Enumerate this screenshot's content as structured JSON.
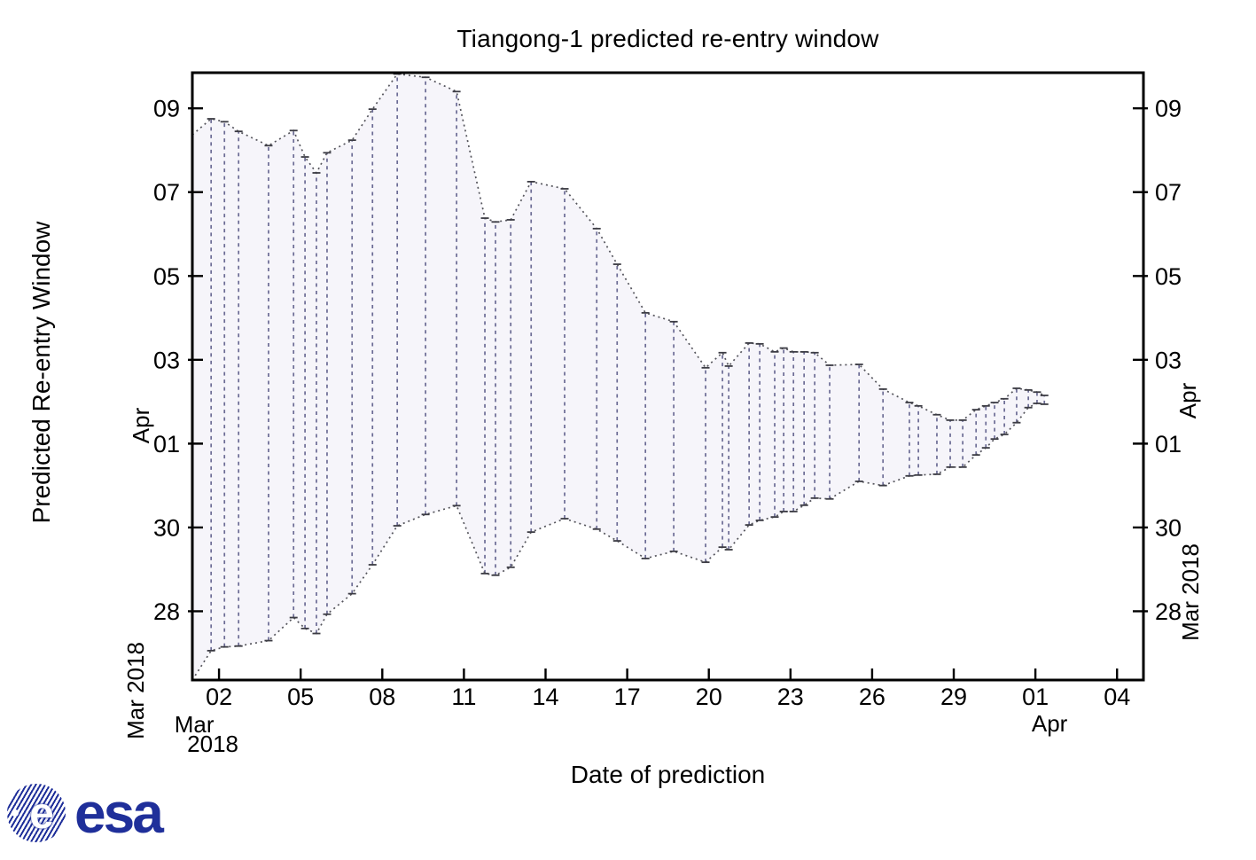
{
  "chart_data": {
    "type": "area",
    "title": "Tiangong-1 predicted re-entry window",
    "xlabel": "Date of prediction",
    "ylabel": "Predicted Re-entry Window",
    "day_unit_note": "day units are days since 2018-02-28; 28 = Mar 28, 32 = Apr 01, 40 = Apr 09",
    "x_axis": {
      "tick_days": [
        2,
        5,
        8,
        11,
        14,
        17,
        20,
        23,
        26,
        29,
        32,
        35
      ],
      "tick_labels": [
        "02",
        "05",
        "08",
        "11",
        "14",
        "17",
        "20",
        "23",
        "26",
        "29",
        "01",
        "04"
      ],
      "month_label_start_line1": "Mar",
      "month_label_start_line2": "2018",
      "month_label_end": "Apr",
      "range_days": [
        1.02,
        35.97
      ],
      "grid": false
    },
    "y_axis": {
      "tick_days": [
        28,
        30,
        32,
        34,
        36,
        38,
        40
      ],
      "tick_labels": [
        "28",
        "30",
        "01",
        "03",
        "05",
        "07",
        "09"
      ],
      "month_label_upper": "Apr",
      "month_label_lower": "Mar 2018",
      "range_days": [
        26.36,
        40.85
      ],
      "mirrored_right_axis": true,
      "grid": false
    },
    "band_edge_start": {
      "x": 1.02,
      "lower": 26.36,
      "upper": 39.37
    },
    "predictions": [
      {
        "x": 1.71,
        "start": 27.06,
        "end": 39.75
      },
      {
        "x": 2.2,
        "start": 27.15,
        "end": 39.68
      },
      {
        "x": 2.72,
        "start": 27.17,
        "end": 39.45
      },
      {
        "x": 3.82,
        "start": 27.3,
        "end": 39.11
      },
      {
        "x": 4.74,
        "start": 27.85,
        "end": 39.47
      },
      {
        "x": 5.16,
        "start": 27.59,
        "end": 38.84
      },
      {
        "x": 5.58,
        "start": 27.47,
        "end": 38.46
      },
      {
        "x": 5.97,
        "start": 27.93,
        "end": 38.94
      },
      {
        "x": 6.89,
        "start": 28.42,
        "end": 39.24
      },
      {
        "x": 7.64,
        "start": 29.11,
        "end": 39.98
      },
      {
        "x": 8.55,
        "start": 30.04,
        "end": 40.82
      },
      {
        "x": 9.59,
        "start": 30.31,
        "end": 40.74
      },
      {
        "x": 10.73,
        "start": 30.52,
        "end": 40.4
      },
      {
        "x": 11.77,
        "start": 28.9,
        "end": 37.38
      },
      {
        "x": 12.16,
        "start": 28.86,
        "end": 37.29
      },
      {
        "x": 12.72,
        "start": 29.05,
        "end": 37.34
      },
      {
        "x": 13.47,
        "start": 29.89,
        "end": 38.25
      },
      {
        "x": 14.7,
        "start": 30.21,
        "end": 38.08
      },
      {
        "x": 15.88,
        "start": 29.96,
        "end": 37.13
      },
      {
        "x": 16.63,
        "start": 29.68,
        "end": 36.28
      },
      {
        "x": 17.67,
        "start": 29.26,
        "end": 35.12
      },
      {
        "x": 18.71,
        "start": 29.43,
        "end": 34.91
      },
      {
        "x": 19.88,
        "start": 29.17,
        "end": 33.81
      },
      {
        "x": 20.5,
        "start": 29.53,
        "end": 34.17
      },
      {
        "x": 20.73,
        "start": 29.47,
        "end": 33.85
      },
      {
        "x": 21.48,
        "start": 30.06,
        "end": 34.4
      },
      {
        "x": 21.87,
        "start": 30.17,
        "end": 34.38
      },
      {
        "x": 22.42,
        "start": 30.25,
        "end": 34.19
      },
      {
        "x": 22.75,
        "start": 30.38,
        "end": 34.28
      },
      {
        "x": 23.11,
        "start": 30.38,
        "end": 34.19
      },
      {
        "x": 23.5,
        "start": 30.53,
        "end": 34.19
      },
      {
        "x": 23.89,
        "start": 30.7,
        "end": 34.17
      },
      {
        "x": 24.44,
        "start": 30.68,
        "end": 33.87
      },
      {
        "x": 25.52,
        "start": 31.1,
        "end": 33.89
      },
      {
        "x": 26.4,
        "start": 31.0,
        "end": 33.3
      },
      {
        "x": 27.37,
        "start": 31.23,
        "end": 32.98
      },
      {
        "x": 27.7,
        "start": 31.25,
        "end": 32.9
      },
      {
        "x": 28.38,
        "start": 31.27,
        "end": 32.69
      },
      {
        "x": 28.87,
        "start": 31.44,
        "end": 32.56
      },
      {
        "x": 29.33,
        "start": 31.44,
        "end": 32.56
      },
      {
        "x": 29.82,
        "start": 31.73,
        "end": 32.81
      },
      {
        "x": 30.18,
        "start": 31.9,
        "end": 32.9
      },
      {
        "x": 30.5,
        "start": 32.11,
        "end": 32.98
      },
      {
        "x": 30.86,
        "start": 32.22,
        "end": 33.07
      },
      {
        "x": 31.31,
        "start": 32.5,
        "end": 33.32
      },
      {
        "x": 31.74,
        "start": 32.86,
        "end": 33.28
      },
      {
        "x": 32.06,
        "start": 32.96,
        "end": 33.23
      },
      {
        "x": 32.33,
        "start": 32.94,
        "end": 33.15
      }
    ],
    "colors": {
      "band_fill": "#f6f5fa",
      "window_line": "#6b6b94",
      "bound_curve": "#55555c",
      "endpoint_marker": "#3c3c44",
      "axis": "#000000",
      "background": "#ffffff"
    }
  },
  "logo": {
    "globe_letter": "e",
    "wordmark": "esa",
    "color": "#1f2f9a"
  }
}
